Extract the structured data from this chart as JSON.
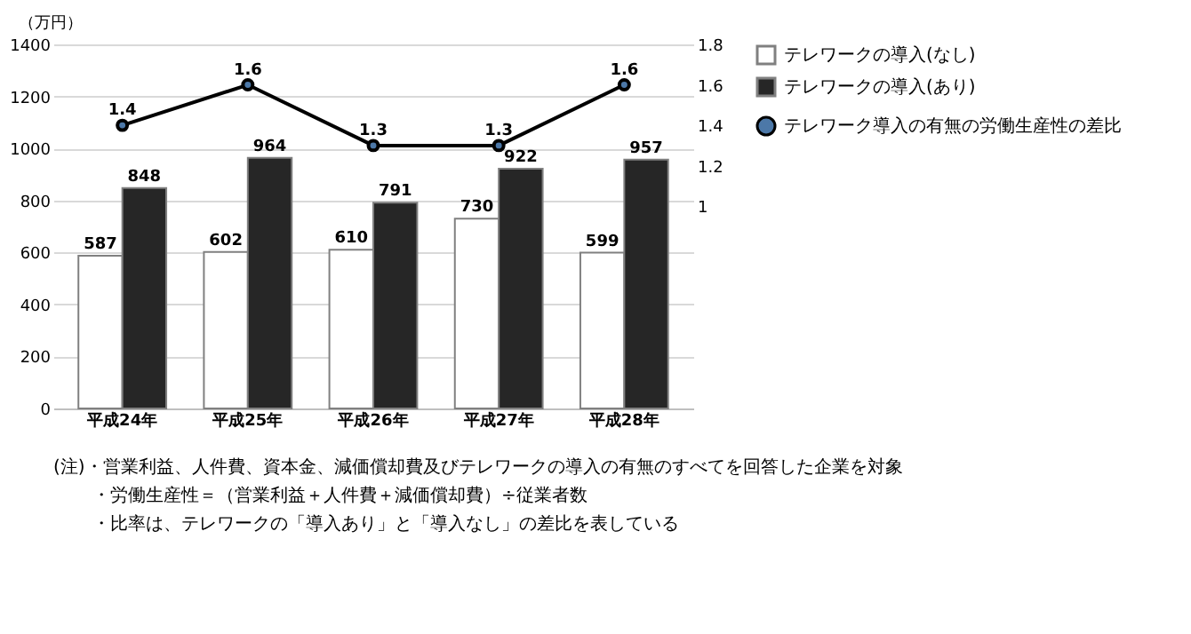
{
  "chart_data": {
    "type": "bar",
    "categories": [
      "平成24年",
      "平成25年",
      "平成26年",
      "平成27年",
      "平成28年"
    ],
    "ylabel": "（万円）",
    "ylim": [
      0,
      1400
    ],
    "yticks": [
      0,
      200,
      400,
      600,
      800,
      1000,
      1200,
      1400
    ],
    "y2lim": [
      0,
      1.8
    ],
    "y2ticks": [
      1,
      1.2,
      1.4,
      1.6,
      1.8
    ],
    "series": [
      {
        "name": "テレワークの導入(なし)",
        "color": "#ffffff",
        "values": [
          587,
          602,
          610,
          730,
          599
        ]
      },
      {
        "name": "テレワークの導入(あり)",
        "color": "#262626",
        "values": [
          848,
          964,
          791,
          922,
          957
        ]
      },
      {
        "name": "テレワーク導入の有無の労働生産性の差比",
        "type": "line",
        "axis": "y2",
        "color": "#000000",
        "marker": "circle",
        "values": [
          1.4,
          1.6,
          1.3,
          1.3,
          1.6
        ]
      }
    ],
    "data_labels": true,
    "grid": "y",
    "legend": "right",
    "annotations": [
      "(注)・営業利益、人件費、資本金、減価償却費及びテレワークの導入の有無のすべてを回答した企業を対象",
      "・労働生産性＝（営業利益＋人件費＋減価償却費）÷従業者数",
      "・比率は、テレワークの「導入あり」と「導入なし」の差比を表している"
    ]
  }
}
